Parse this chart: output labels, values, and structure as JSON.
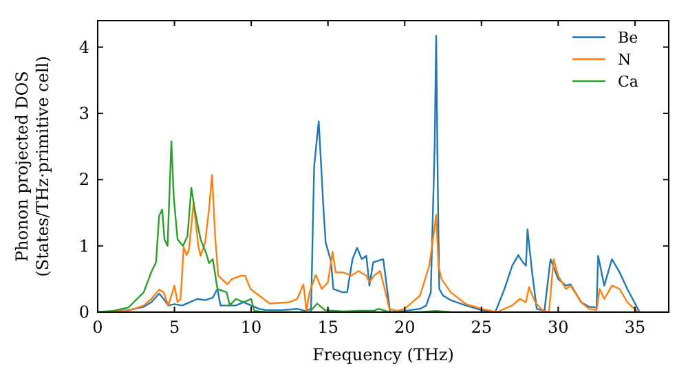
{
  "chart_data": {
    "type": "line",
    "xlabel": "Frequency (THz)",
    "ylabel": "Phonon projected DOS\n(States/THz·primitive cell)",
    "xlim": [
      0,
      37.2
    ],
    "ylim": [
      0,
      4.4
    ],
    "xticks": [
      0,
      5,
      10,
      15,
      20,
      25,
      30,
      35
    ],
    "yticks": [
      0,
      1,
      2,
      3,
      4
    ],
    "legend": "top right",
    "grid": false,
    "marker": "none",
    "line_style": "solid",
    "series": [
      {
        "name": "Be",
        "color": "#1f77b4",
        "x": [
          0,
          1,
          2,
          3,
          3.5,
          4,
          4.3,
          4.6,
          5,
          5.5,
          6,
          6.5,
          7,
          7.5,
          7.8,
          8,
          9,
          9.5,
          10,
          10.5,
          11,
          12,
          13,
          13.5,
          13.9,
          14.1,
          14.4,
          14.7,
          14.85,
          15.2,
          15.35,
          15.95,
          16.25,
          16.6,
          16.9,
          17.2,
          17.5,
          17.7,
          17.95,
          18.6,
          19.05,
          20,
          21,
          21.4,
          21.7,
          21.95,
          22.05,
          22.15,
          22.25,
          22.5,
          23,
          24,
          25,
          25.9,
          26.5,
          27,
          27.4,
          27.7,
          27.9,
          28,
          28.3,
          28.6,
          29.1,
          29.5,
          30,
          30.5,
          30.8,
          31.5,
          32,
          32.5,
          32.6,
          33,
          33.5,
          34,
          34.5,
          35.3
        ],
        "values": [
          0,
          0.01,
          0.03,
          0.08,
          0.15,
          0.28,
          0.2,
          0.1,
          0.12,
          0.1,
          0.15,
          0.2,
          0.18,
          0.22,
          0.35,
          0.1,
          0.1,
          0.15,
          0.1,
          0.05,
          0.03,
          0.03,
          0.05,
          0.02,
          0.05,
          2.2,
          2.88,
          1.6,
          1.05,
          0.77,
          0.35,
          0.3,
          0.3,
          0.8,
          0.97,
          0.8,
          0.85,
          0.4,
          0.75,
          0.8,
          0,
          0.02,
          0.05,
          0.1,
          0.3,
          2.5,
          4.17,
          2,
          0.35,
          0.25,
          0.18,
          0.1,
          0.03,
          0,
          0.35,
          0.7,
          0.86,
          0.75,
          0.7,
          1.25,
          0.6,
          0.05,
          0.02,
          0.8,
          0.5,
          0.4,
          0.42,
          0.15,
          0.08,
          0.07,
          0.85,
          0.4,
          0.8,
          0.6,
          0.35,
          0
        ]
      },
      {
        "name": "N",
        "color": "#ff7f0e",
        "x": [
          0,
          2,
          3,
          3.5,
          4,
          4.3,
          4.6,
          5,
          5.2,
          5.4,
          5.6,
          5.8,
          5.95,
          6.25,
          6.55,
          6.7,
          7,
          7.25,
          7.45,
          7.65,
          7.85,
          8.45,
          8.75,
          9.35,
          9.6,
          9.95,
          11.2,
          12.5,
          13,
          13.4,
          13.6,
          13.8,
          14.2,
          14.6,
          15,
          15.3,
          15.5,
          16,
          16.5,
          17,
          17.5,
          17.7,
          18,
          18.4,
          18.7,
          19,
          19.5,
          20,
          21,
          21.6,
          21.9,
          22.05,
          22.2,
          22.4,
          23,
          24,
          25,
          26,
          27,
          27.5,
          27.9,
          28.1,
          28.5,
          29,
          29.4,
          29.7,
          30,
          30.5,
          30.8,
          31.5,
          32,
          32.5,
          32.7,
          33,
          33.5,
          34,
          34.5,
          35.2
        ],
        "values": [
          0,
          0.02,
          0.1,
          0.2,
          0.34,
          0.3,
          0.1,
          0.4,
          0.15,
          0.2,
          0.98,
          0.86,
          0.95,
          1.66,
          1,
          0.85,
          1.05,
          1.55,
          2.07,
          1.15,
          0.55,
          0.42,
          0.5,
          0.55,
          0.55,
          0.35,
          0.13,
          0.15,
          0.2,
          0.42,
          0.02,
          0.3,
          0.56,
          0.35,
          0.45,
          0.91,
          0.6,
          0.6,
          0.55,
          0.62,
          0.55,
          0.45,
          0.55,
          0.62,
          0.35,
          0.05,
          0.02,
          0.05,
          0.25,
          0.7,
          1.2,
          1.47,
          0.7,
          0.5,
          0.3,
          0.12,
          0.05,
          0,
          0.1,
          0.2,
          0.15,
          0.38,
          0.15,
          0.02,
          0,
          0.8,
          0.55,
          0.35,
          0.4,
          0.15,
          0.05,
          0.03,
          0.35,
          0.2,
          0.4,
          0.35,
          0.15,
          0
        ]
      },
      {
        "name": "Ca",
        "color": "#2ca02c",
        "x": [
          0,
          1,
          2,
          3,
          3.5,
          3.8,
          4,
          4.2,
          4.35,
          4.55,
          4.8,
          4.95,
          5.2,
          5.55,
          5.85,
          6.1,
          6.3,
          6.7,
          7.05,
          7.25,
          7.5,
          7.8,
          8.4,
          8.6,
          9,
          9.5,
          10,
          10.2,
          11,
          13.8,
          14.3,
          14.8,
          16,
          17,
          18,
          18.3,
          19,
          21,
          22,
          23
        ],
        "values": [
          0,
          0.02,
          0.07,
          0.3,
          0.61,
          0.75,
          1.45,
          1.55,
          1.1,
          1,
          2.58,
          1.75,
          1.1,
          1,
          1.15,
          1.88,
          1.57,
          1.1,
          0.9,
          0.74,
          0.8,
          0.35,
          0.3,
          0.1,
          0.2,
          0.15,
          0.2,
          0.02,
          0,
          0,
          0.13,
          0.03,
          0.01,
          0.02,
          0.02,
          0.05,
          0,
          0,
          0.02,
          0
        ]
      }
    ]
  }
}
